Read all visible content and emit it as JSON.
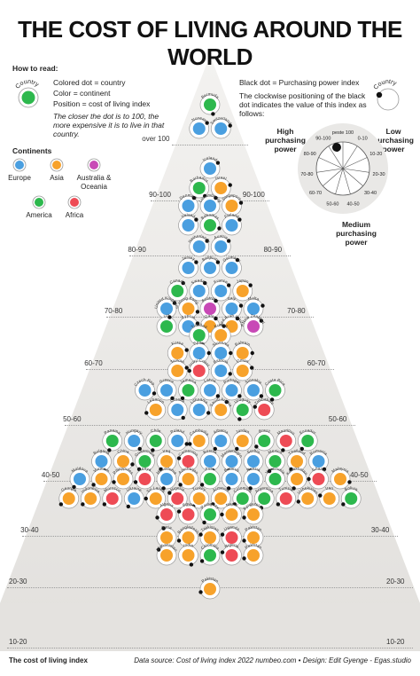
{
  "title": "THE COST OF LIVING AROUND THE WORLD",
  "legend": {
    "how_to_read": "How to read:",
    "country_arc": "Country",
    "colored_dot": "Colored dot",
    "colored_dot_desc": "= country",
    "color": "Color",
    "color_desc": "= continent",
    "position": "Position",
    "position_desc": "= cost of living index",
    "closer_note": "The closer the dot is to 100, the more expensive it is to live in that country.",
    "black_dot": "Black dot",
    "black_dot_desc": "= Purchasing power index",
    "clockwise_note": "The clockwise positioning of the black dot indicates the value of this index as follows:",
    "high_pp": "High purchasing power",
    "low_pp": "Low purchasing power",
    "medium_pp": "Medium purchasing power",
    "dial_labels": [
      "peste 100",
      "0-10",
      "10-20",
      "20-30",
      "30-40",
      "40-50",
      "50-60",
      "60-70",
      "70-80",
      "80-90",
      "90-100"
    ],
    "continents_title": "Continents",
    "continents": [
      {
        "name": "Europe",
        "color": "#4a9fe0"
      },
      {
        "name": "Asia",
        "color": "#f7a22b"
      },
      {
        "name": "Australia & Oceania",
        "color": "#c849b6"
      },
      {
        "name": "America",
        "color": "#2db84d"
      },
      {
        "name": "Africa",
        "color": "#ee4b55"
      }
    ]
  },
  "bands": [
    "over 100",
    "90-100",
    "80-90",
    "70-80",
    "60-70",
    "50-60",
    "40-50",
    "30-40",
    "20-30",
    "10-20"
  ],
  "rows": [
    {
      "band": 0,
      "countries": [
        {
          "name": "Bermuda",
          "c": "America",
          "pp": 0.55
        }
      ]
    },
    {
      "band": 0,
      "countries": [
        {
          "name": "Norway",
          "c": "Europe",
          "pp": 0.85
        },
        {
          "name": "Switzerland",
          "c": "Europe",
          "pp": 0.8
        }
      ]
    },
    {
      "band": 1,
      "countries": [
        {
          "name": "Iceland",
          "c": "Europe",
          "pp": 0.85
        }
      ]
    },
    {
      "band": 1,
      "countries": [
        {
          "name": "Barbados",
          "c": "America",
          "pp": 0.6
        },
        {
          "name": "Israel",
          "c": "Asia",
          "pp": 0.8
        }
      ]
    },
    {
      "band": 1,
      "countries": [
        {
          "name": "Denmark",
          "c": "Europe",
          "pp": 0.9
        },
        {
          "name": "Luxembourg",
          "c": "Europe",
          "pp": 0.9
        },
        {
          "name": "Singapore",
          "c": "Asia",
          "pp": 0.8
        }
      ]
    },
    {
      "band": 2,
      "countries": [
        {
          "name": "Ireland",
          "c": "Europe",
          "pp": 0.85
        },
        {
          "name": "Bahamas",
          "c": "America",
          "pp": 0.7
        },
        {
          "name": "Finland",
          "c": "Europe",
          "pp": 0.85
        }
      ]
    },
    {
      "band": 2,
      "countries": [
        {
          "name": "Netherlands",
          "c": "Europe",
          "pp": 0.85
        },
        {
          "name": "Austria",
          "c": "Europe",
          "pp": 0.85
        }
      ]
    },
    {
      "band": 2,
      "countries": [
        {
          "name": "Jersey",
          "c": "Europe",
          "pp": 0.85
        },
        {
          "name": "Belgium",
          "c": "Europe",
          "pp": 0.85
        },
        {
          "name": "Germany",
          "c": "Europe",
          "pp": 0.9
        }
      ]
    },
    {
      "band": 3,
      "countries": [
        {
          "name": "Canada",
          "c": "America",
          "pp": 0.9
        },
        {
          "name": "Sweden",
          "c": "Europe",
          "pp": 0.9
        },
        {
          "name": "France",
          "c": "Europe",
          "pp": 0.85
        },
        {
          "name": "Japan",
          "c": "Asia",
          "pp": 0.85
        }
      ]
    },
    {
      "band": 3,
      "countries": [
        {
          "name": "United Kingdom",
          "c": "Europe",
          "pp": 0.85
        },
        {
          "name": "Hong Kong",
          "c": "Asia",
          "pp": 0.7
        },
        {
          "name": "Australia",
          "c": "Australia & Oceania",
          "pp": 0.9
        },
        {
          "name": "Italy",
          "c": "Europe",
          "pp": 0.8
        },
        {
          "name": "Malta",
          "c": "Europe",
          "pp": 0.8
        }
      ]
    },
    {
      "band": 3,
      "countries": [
        {
          "name": "US",
          "c": "America",
          "pp": 0.95
        },
        {
          "name": "Cyprus",
          "c": "Europe",
          "pp": 0.8
        },
        {
          "name": "Qatar",
          "c": "Asia",
          "pp": 0.9
        },
        {
          "name": "United Arab Emirates",
          "c": "Asia",
          "pp": 0.9
        },
        {
          "name": "New Zealand",
          "c": "Australia & Oceania",
          "pp": 0.85
        }
      ]
    },
    {
      "band": 4,
      "countries": [
        {
          "name": "Trinidad",
          "c": "America",
          "pp": 0.55
        },
        {
          "name": "Kuwait",
          "c": "Asia",
          "pp": 0.95
        }
      ]
    },
    {
      "band": 4,
      "countries": [
        {
          "name": "Korea",
          "c": "Asia",
          "pp": 0.8
        },
        {
          "name": "Spain",
          "c": "Europe",
          "pp": 0.75
        },
        {
          "name": "Slovenia",
          "c": "Europe",
          "pp": 0.75
        },
        {
          "name": "Bahrain",
          "c": "Asia",
          "pp": 0.75
        }
      ]
    },
    {
      "band": 4,
      "countries": [
        {
          "name": "Taiwan",
          "c": "Asia",
          "pp": 0.8
        },
        {
          "name": "Ivory Coast",
          "c": "Africa",
          "pp": 0.25
        },
        {
          "name": "Estonia",
          "c": "Europe",
          "pp": 0.7
        },
        {
          "name": "Oman",
          "c": "Asia",
          "pp": 0.8
        }
      ]
    },
    {
      "band": 4,
      "countries": [
        {
          "name": "Czech Rep.",
          "c": "Europe",
          "pp": 0.7
        },
        {
          "name": "Greece",
          "c": "Europe",
          "pp": 0.6
        },
        {
          "name": "Jamaica",
          "c": "America",
          "pp": 0.4
        },
        {
          "name": "Latvia",
          "c": "Europe",
          "pp": 0.65
        },
        {
          "name": "Portugal",
          "c": "Europe",
          "pp": 0.65
        },
        {
          "name": "Slovakia",
          "c": "Europe",
          "pp": 0.65
        },
        {
          "name": "Costa Rica",
          "c": "America",
          "pp": 0.45
        }
      ]
    },
    {
      "band": 5,
      "countries": [
        {
          "name": "Lebanon",
          "c": "Asia",
          "pp": 0.3
        },
        {
          "name": "Croatia",
          "c": "Europe",
          "pp": 0.6
        },
        {
          "name": "Lithuania",
          "c": "Europe",
          "pp": 0.7
        },
        {
          "name": "Saudi Arabia",
          "c": "Asia",
          "pp": 0.9
        },
        {
          "name": "Uruguay",
          "c": "America",
          "pp": 0.45
        },
        {
          "name": "Zimbabwe",
          "c": "Africa",
          "pp": 0.2
        }
      ]
    },
    {
      "band": 5,
      "countries": [
        {
          "name": "Panama",
          "c": "America",
          "pp": 0.45
        },
        {
          "name": "Hungary",
          "c": "Europe",
          "pp": 0.6
        },
        {
          "name": "Chile",
          "c": "America",
          "pp": 0.45
        },
        {
          "name": "Poland",
          "c": "Europe",
          "pp": 0.7
        },
        {
          "name": "Cambodia",
          "c": "Asia",
          "pp": 0.3
        },
        {
          "name": "Albania",
          "c": "Europe",
          "pp": 0.4
        },
        {
          "name": "Jordan",
          "c": "Asia",
          "pp": 0.4
        },
        {
          "name": "Brazil",
          "c": "America",
          "pp": 0.35
        },
        {
          "name": "Mauritius",
          "c": "Africa",
          "pp": 0.45
        },
        {
          "name": "Ecuador",
          "c": "America",
          "pp": 0.4
        }
      ]
    },
    {
      "band": 5,
      "countries": [
        {
          "name": "Bulgaria",
          "c": "Europe",
          "pp": 0.55
        },
        {
          "name": "China",
          "c": "Asia",
          "pp": 0.7
        },
        {
          "name": "Guatemala",
          "c": "America",
          "pp": 0.4
        },
        {
          "name": "Iraq",
          "c": "Asia",
          "pp": 0.4
        },
        {
          "name": "Cameroon",
          "c": "Africa",
          "pp": 0.2
        },
        {
          "name": "Bosnia",
          "c": "Europe",
          "pp": 0.55
        },
        {
          "name": "Montenegro",
          "c": "Europe",
          "pp": 0.45
        },
        {
          "name": "Serbia",
          "c": "Europe",
          "pp": 0.45
        },
        {
          "name": "Mexico",
          "c": "America",
          "pp": 0.45
        },
        {
          "name": "Thailand",
          "c": "Asia",
          "pp": 0.4
        },
        {
          "name": "Romania",
          "c": "Europe",
          "pp": 0.6
        }
      ]
    },
    {
      "band": 6,
      "countries": [
        {
          "name": "Moldova",
          "c": "Europe",
          "pp": 0.4
        },
        {
          "name": "Vietnam",
          "c": "Asia",
          "pp": 0.35
        },
        {
          "name": "Philippines",
          "c": "Asia",
          "pp": 0.3
        },
        {
          "name": "Kenya",
          "c": "Africa",
          "pp": 0.3
        },
        {
          "name": "Macedonia",
          "c": "Europe",
          "pp": 0.45
        },
        {
          "name": "Azerbaijan",
          "c": "Asia",
          "pp": 0.35
        },
        {
          "name": "Peru",
          "c": "America",
          "pp": 0.35
        },
        {
          "name": "Belarus",
          "c": "Europe",
          "pp": 0.45
        },
        {
          "name": "Russia",
          "c": "Europe",
          "pp": 0.45
        },
        {
          "name": "Venezuela",
          "c": "America",
          "pp": 0.1
        },
        {
          "name": "Kazakhstan",
          "c": "Asia",
          "pp": 0.45
        },
        {
          "name": "Ghana",
          "c": "Africa",
          "pp": 0.25
        },
        {
          "name": "Malaysia",
          "c": "Asia",
          "pp": 0.7
        }
      ]
    },
    {
      "band": 6,
      "countries": [
        {
          "name": "Georgia",
          "c": "Asia",
          "pp": 0.35
        },
        {
          "name": "Indonesia",
          "c": "Asia",
          "pp": 0.35
        },
        {
          "name": "Morocco",
          "c": "Africa",
          "pp": 0.35
        },
        {
          "name": "Ukraine",
          "c": "Europe",
          "pp": 0.4
        },
        {
          "name": "Sri Lanka",
          "c": "Asia",
          "pp": 0.25
        },
        {
          "name": "Nigeria",
          "c": "Africa",
          "pp": 0.15
        },
        {
          "name": "Turkey",
          "c": "Asia",
          "pp": 0.4
        },
        {
          "name": "Armenia",
          "c": "Asia",
          "pp": 0.35
        },
        {
          "name": "Colombia",
          "c": "America",
          "pp": 0.35
        },
        {
          "name": "Argentina",
          "c": "America",
          "pp": 0.45
        },
        {
          "name": "Tunisia",
          "c": "Africa",
          "pp": 0.35
        },
        {
          "name": "Uzbekistan",
          "c": "Asia",
          "pp": 0.3
        },
        {
          "name": "Iran",
          "c": "Asia",
          "pp": 0.2
        },
        {
          "name": "Bolivia",
          "c": "America",
          "pp": 0.35
        }
      ]
    },
    {
      "band": 7,
      "countries": [
        {
          "name": "Algeria",
          "c": "Africa",
          "pp": 0.3
        },
        {
          "name": "Egypt",
          "c": "Africa",
          "pp": 0.2
        },
        {
          "name": "Paraguay",
          "c": "America",
          "pp": 0.4
        },
        {
          "name": "Nepal",
          "c": "Asia",
          "pp": 0.25
        },
        {
          "name": "Kyrgyzstan",
          "c": "Asia",
          "pp": 0.3
        }
      ]
    },
    {
      "band": 7,
      "countries": [
        {
          "name": "Syria",
          "c": "Asia",
          "pp": 0.05
        },
        {
          "name": "Bangladesh",
          "c": "Asia",
          "pp": 0.3
        },
        {
          "name": "Tajikistan",
          "c": "Asia",
          "pp": 0.2
        },
        {
          "name": "Uganda",
          "c": "Africa",
          "pp": 0.2
        },
        {
          "name": "Pakistan",
          "c": "Asia",
          "pp": 0.3
        }
      ]
    },
    {
      "band": 8,
      "countries": [
        {
          "name": "Afghanistan",
          "c": "Asia",
          "pp": 0.15
        },
        {
          "name": "India",
          "c": "Asia",
          "pp": 0.55
        },
        {
          "name": "Colombia",
          "c": "America",
          "pp": 0.35
        },
        {
          "name": "Nigeria",
          "c": "Africa",
          "pp": 0.2
        },
        {
          "name": "Pakistan",
          "c": "Asia",
          "pp": 0.3
        }
      ]
    },
    {
      "band": 9,
      "countries": [
        {
          "name": "Pakistan",
          "c": "Asia",
          "pp": 0.3
        }
      ]
    }
  ],
  "footer_left": "The cost of living index",
  "footer_right": "Data source: Cost of living index 2022 numbeo.com • Design: Edit Gyenge - Egas.studio"
}
